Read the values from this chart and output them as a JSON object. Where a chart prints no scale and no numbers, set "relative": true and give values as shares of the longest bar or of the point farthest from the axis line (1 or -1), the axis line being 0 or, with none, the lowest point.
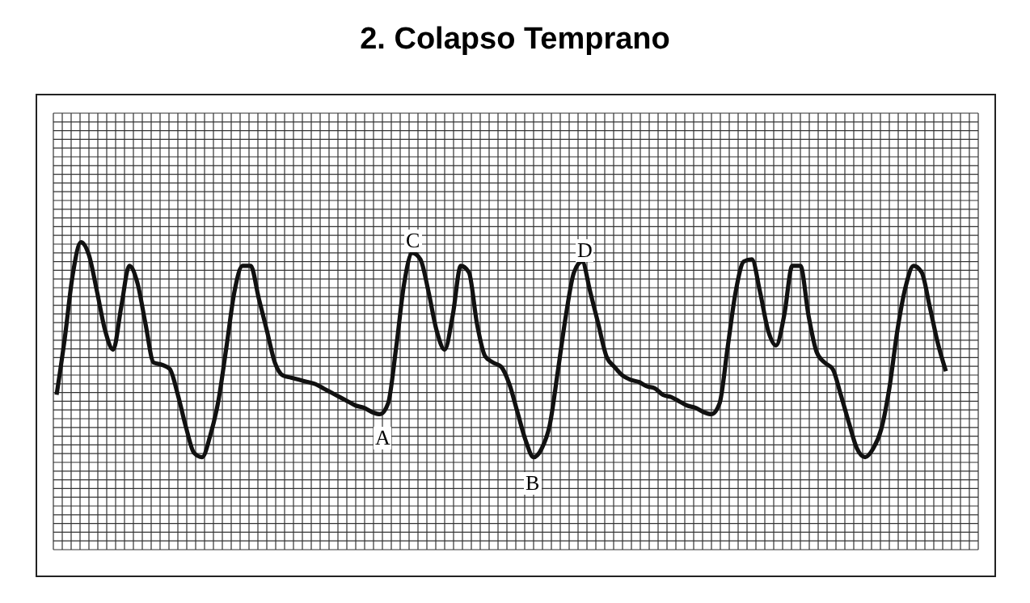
{
  "chart_data": {
    "type": "line",
    "title": "2. Colapso Temprano",
    "relative": true,
    "grid": true,
    "color": "#111111",
    "marker": "none",
    "line_style": "solid",
    "categories": [
      null,
      null,
      null,
      null,
      null,
      null,
      null,
      null,
      null,
      null,
      null,
      null,
      null,
      null,
      null,
      null,
      null,
      null,
      null,
      null,
      null,
      null,
      null,
      null,
      null,
      null,
      null,
      null,
      null,
      null,
      null,
      null,
      null,
      null,
      null,
      null,
      null,
      null,
      null,
      null,
      null,
      null,
      null,
      null,
      null,
      null,
      null,
      null,
      null,
      null,
      null,
      null,
      null,
      null,
      null,
      null,
      null,
      null,
      null,
      null,
      null,
      null,
      null,
      null,
      null,
      null,
      null,
      null,
      null,
      null,
      null,
      null,
      null,
      null,
      null,
      null,
      null,
      null,
      null,
      null,
      null,
      null,
      null,
      null,
      null,
      null,
      null,
      null,
      null,
      null,
      null,
      null,
      null,
      null,
      null,
      null,
      null,
      null,
      null,
      null,
      null,
      null,
      null,
      null,
      null,
      null,
      null,
      null,
      null,
      null,
      null
    ],
    "values": [
      0.29,
      0.55,
      0.85,
      1.0,
      0.94,
      0.77,
      0.59,
      0.5,
      0.7,
      0.89,
      0.81,
      0.62,
      0.44,
      0.43,
      0.41,
      0.29,
      0.14,
      0.02,
      0,
      0.1,
      0.26,
      0.51,
      0.77,
      0.89,
      0.89,
      0.74,
      0.59,
      0.44,
      0.38,
      0.37,
      0.36,
      0.35,
      0.34,
      0.32,
      0.3,
      0.28,
      0.26,
      0.24,
      0.23,
      0.21,
      0.2,
      0.25,
      0.51,
      0.81,
      0.95,
      0.92,
      0.77,
      0.59,
      0.5,
      0.66,
      0.89,
      0.86,
      0.62,
      0.47,
      0.44,
      0.42,
      0.34,
      0.21,
      0.08,
      0,
      0.04,
      0.15,
      0.4,
      0.66,
      0.86,
      0.91,
      0.77,
      0.62,
      0.47,
      0.42,
      0.38,
      0.36,
      0.35,
      0.33,
      0.32,
      0.29,
      0.28,
      0.26,
      0.24,
      0.23,
      0.21,
      0.2,
      0.25,
      0.51,
      0.77,
      0.91,
      0.92,
      0.77,
      0.59,
      0.52,
      0.66,
      0.89,
      0.89,
      0.66,
      0.49,
      0.44,
      0.41,
      0.29,
      0.16,
      0.04,
      0,
      0.04,
      0.13,
      0.32,
      0.59,
      0.79,
      0.89,
      0.86,
      0.7,
      0.53,
      0.4
    ],
    "annotations": [
      "A",
      "B",
      "C",
      "D"
    ]
  }
}
